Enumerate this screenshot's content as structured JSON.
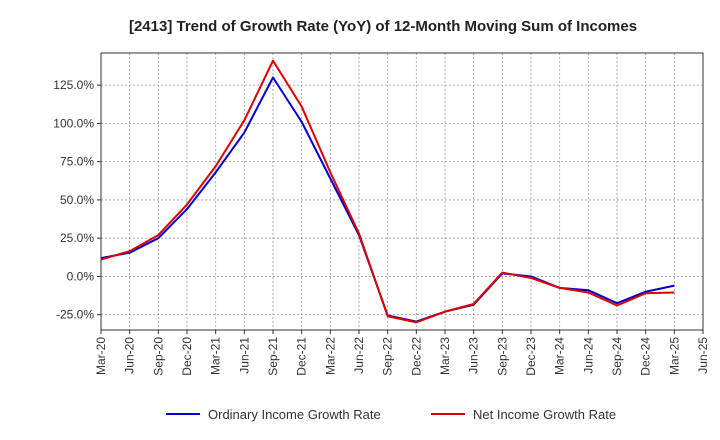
{
  "chart_data": {
    "type": "line",
    "title": "[2413]  Trend of Growth Rate (YoY) of 12-Month Moving Sum of Incomes",
    "xlabel": "",
    "ylabel": "",
    "x": [
      "Mar-20",
      "Jun-20",
      "Sep-20",
      "Dec-20",
      "Mar-21",
      "Jun-21",
      "Sep-21",
      "Dec-21",
      "Mar-22",
      "Jun-22",
      "Sep-22",
      "Dec-22",
      "Mar-23",
      "Jun-23",
      "Sep-23",
      "Dec-23",
      "Mar-24",
      "Jun-24",
      "Sep-24",
      "Dec-24",
      "Mar-25",
      "Jun-25"
    ],
    "x_tick_labels": [
      "Mar-20",
      "Jun-20",
      "Sep-20",
      "Dec-20",
      "Mar-21",
      "Jun-21",
      "Sep-21",
      "Dec-21",
      "Mar-22",
      "Jun-22",
      "Sep-22",
      "Dec-22",
      "Mar-23",
      "Jun-23",
      "Sep-23",
      "Dec-23",
      "Mar-24",
      "Jun-24",
      "Sep-24",
      "Dec-24",
      "Mar-25",
      "Jun-25"
    ],
    "y_ticks": [
      -25,
      0,
      25,
      50,
      75,
      100,
      125
    ],
    "y_tick_labels": [
      "-25.0%",
      "0.0%",
      "25.0%",
      "50.0%",
      "75.0%",
      "100.0%",
      "125.0%"
    ],
    "ylim": [
      -35,
      146
    ],
    "grid": true,
    "legend_position": "bottom",
    "series": [
      {
        "name": "Ordinary Income Growth Rate",
        "color": "#0000cc",
        "values": [
          12,
          15.5,
          25,
          44,
          68,
          94,
          130,
          101,
          64,
          27,
          -25.5,
          -29.5,
          -23,
          -18.5,
          2,
          0,
          -7.5,
          -9,
          -17.5,
          -10,
          -6,
          null
        ]
      },
      {
        "name": "Net Income Growth Rate",
        "color": "#dd0000",
        "values": [
          11,
          16.5,
          27,
          47,
          72,
          102,
          141,
          111,
          68,
          28,
          -26,
          -30,
          -23,
          -18,
          2.5,
          -1,
          -7.5,
          -10.5,
          -19,
          -11,
          -10.5,
          null
        ]
      }
    ]
  }
}
